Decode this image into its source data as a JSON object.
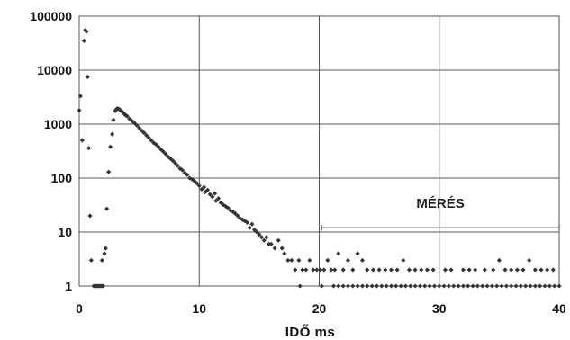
{
  "chart_data": {
    "type": "scatter",
    "title": "",
    "xlabel": "IDŐ  ms",
    "ylabel": "",
    "xlim": [
      0,
      40
    ],
    "ylim": [
      1,
      100000
    ],
    "yscale": "log",
    "grid": true,
    "x_ticks": [
      0,
      10,
      20,
      30,
      40
    ],
    "y_ticks": [
      1,
      10,
      100,
      1000,
      10000,
      100000
    ],
    "annotation": {
      "text": "MÉRÉS",
      "range": [
        20.2,
        40
      ]
    },
    "marker_color": "#333333",
    "series": [
      {
        "points": [
          [
            0.0,
            1800
          ],
          [
            0.1,
            3300
          ],
          [
            0.25,
            500
          ],
          [
            0.4,
            35000
          ],
          [
            0.5,
            55000
          ],
          [
            0.6,
            52000
          ],
          [
            0.7,
            7500
          ],
          [
            0.8,
            360
          ],
          [
            0.9,
            20
          ],
          [
            1.0,
            3
          ],
          [
            1.2,
            1
          ],
          [
            1.3,
            1
          ],
          [
            1.4,
            1
          ],
          [
            1.5,
            1
          ],
          [
            1.6,
            1
          ],
          [
            1.7,
            1
          ],
          [
            1.8,
            1
          ],
          [
            1.9,
            1
          ],
          [
            2.0,
            1
          ],
          [
            1.9,
            3
          ],
          [
            2.1,
            4
          ],
          [
            2.2,
            5
          ],
          [
            2.3,
            27
          ],
          [
            2.45,
            130
          ],
          [
            2.6,
            380
          ],
          [
            2.75,
            650
          ],
          [
            2.85,
            1200
          ],
          [
            3.0,
            1750
          ],
          [
            3.1,
            1900
          ],
          [
            3.2,
            1950
          ],
          [
            3.3,
            1900
          ],
          [
            3.4,
            1850
          ],
          [
            3.5,
            1750
          ],
          [
            3.6,
            1680
          ],
          [
            3.7,
            1600
          ],
          [
            3.8,
            1500
          ],
          [
            3.9,
            1450
          ],
          [
            4.0,
            1400
          ],
          [
            4.2,
            1250
          ],
          [
            4.4,
            1150
          ],
          [
            4.6,
            1050
          ],
          [
            4.8,
            950
          ],
          [
            5.0,
            850
          ],
          [
            5.2,
            760
          ],
          [
            5.4,
            690
          ],
          [
            5.6,
            620
          ],
          [
            5.8,
            560
          ],
          [
            6.0,
            500
          ],
          [
            6.2,
            450
          ],
          [
            6.4,
            420
          ],
          [
            6.6,
            380
          ],
          [
            6.8,
            340
          ],
          [
            7.0,
            310
          ],
          [
            7.2,
            280
          ],
          [
            7.4,
            250
          ],
          [
            7.6,
            230
          ],
          [
            7.8,
            210
          ],
          [
            8.0,
            190
          ],
          [
            8.2,
            170
          ],
          [
            8.4,
            150
          ],
          [
            8.6,
            140
          ],
          [
            8.8,
            125
          ],
          [
            9.0,
            115
          ],
          [
            9.2,
            100
          ],
          [
            9.4,
            95
          ],
          [
            9.6,
            88
          ],
          [
            9.8,
            80
          ],
          [
            10.0,
            72
          ],
          [
            10.2,
            62
          ],
          [
            10.4,
            68
          ],
          [
            10.5,
            55
          ],
          [
            10.7,
            60
          ],
          [
            10.9,
            50
          ],
          [
            11.1,
            45
          ],
          [
            11.3,
            52
          ],
          [
            11.4,
            38
          ],
          [
            11.6,
            42
          ],
          [
            11.8,
            35
          ],
          [
            12.0,
            32
          ],
          [
            12.2,
            30
          ],
          [
            12.4,
            28
          ],
          [
            12.6,
            25
          ],
          [
            12.8,
            24
          ],
          [
            13.0,
            22
          ],
          [
            13.2,
            20
          ],
          [
            13.4,
            18
          ],
          [
            13.6,
            17
          ],
          [
            13.8,
            16
          ],
          [
            14.0,
            15
          ],
          [
            14.2,
            12
          ],
          [
            14.4,
            14
          ],
          [
            14.6,
            11
          ],
          [
            14.8,
            10
          ],
          [
            15.0,
            9
          ],
          [
            15.2,
            8
          ],
          [
            15.4,
            7
          ],
          [
            15.6,
            8
          ],
          [
            15.8,
            6
          ],
          [
            16.0,
            6
          ],
          [
            16.3,
            5
          ],
          [
            16.6,
            7
          ],
          [
            16.9,
            5
          ],
          [
            17.1,
            4
          ],
          [
            17.4,
            3
          ],
          [
            17.7,
            3
          ],
          [
            18.0,
            2
          ],
          [
            18.3,
            3
          ],
          [
            18.6,
            2
          ],
          [
            18.9,
            2
          ],
          [
            19.2,
            3
          ],
          [
            19.5,
            2
          ],
          [
            19.8,
            2
          ],
          [
            20.1,
            2
          ],
          [
            20.4,
            2
          ],
          [
            20.7,
            3
          ],
          [
            21.0,
            2
          ],
          [
            21.3,
            2
          ],
          [
            21.6,
            4
          ],
          [
            22.0,
            2
          ],
          [
            22.4,
            3
          ],
          [
            22.8,
            2
          ],
          [
            23.2,
            4
          ],
          [
            23.6,
            3
          ],
          [
            24.0,
            2
          ],
          [
            24.5,
            2
          ],
          [
            25.0,
            2
          ],
          [
            25.5,
            2
          ],
          [
            26.0,
            2
          ],
          [
            26.5,
            2
          ],
          [
            27.0,
            3
          ],
          [
            27.5,
            2
          ],
          [
            28.0,
            2
          ],
          [
            28.5,
            2
          ],
          [
            29.0,
            2
          ],
          [
            29.5,
            2
          ],
          [
            30.5,
            2
          ],
          [
            31.0,
            2
          ],
          [
            32.0,
            2
          ],
          [
            32.5,
            2
          ],
          [
            33.0,
            2
          ],
          [
            33.8,
            2
          ],
          [
            34.5,
            2
          ],
          [
            35.0,
            3
          ],
          [
            35.5,
            2
          ],
          [
            36.0,
            2
          ],
          [
            36.5,
            2
          ],
          [
            37.0,
            2
          ],
          [
            37.5,
            3
          ],
          [
            38.0,
            2
          ],
          [
            38.5,
            2
          ],
          [
            39.0,
            2
          ],
          [
            39.5,
            2
          ],
          [
            18.4,
            1
          ],
          [
            20.2,
            1
          ],
          [
            21.2,
            1
          ],
          [
            21.6,
            1
          ],
          [
            22.0,
            1
          ],
          [
            22.4,
            1
          ],
          [
            22.8,
            1
          ],
          [
            23.2,
            1
          ],
          [
            23.6,
            1
          ],
          [
            24.0,
            1
          ],
          [
            24.4,
            1
          ],
          [
            24.8,
            1
          ],
          [
            25.2,
            1
          ],
          [
            25.6,
            1
          ],
          [
            26.0,
            1
          ],
          [
            26.4,
            1
          ],
          [
            26.8,
            1
          ],
          [
            27.2,
            1
          ],
          [
            27.6,
            1
          ],
          [
            28.0,
            1
          ],
          [
            28.4,
            1
          ],
          [
            28.8,
            1
          ],
          [
            29.2,
            1
          ],
          [
            29.6,
            1
          ],
          [
            30.0,
            1
          ],
          [
            30.4,
            1
          ],
          [
            30.8,
            1
          ],
          [
            31.2,
            1
          ],
          [
            31.6,
            1
          ],
          [
            32.0,
            1
          ],
          [
            32.4,
            1
          ],
          [
            32.8,
            1
          ],
          [
            33.2,
            1
          ],
          [
            33.6,
            1
          ],
          [
            34.0,
            1
          ],
          [
            34.4,
            1
          ],
          [
            34.8,
            1
          ],
          [
            35.2,
            1
          ],
          [
            35.6,
            1
          ],
          [
            36.0,
            1
          ],
          [
            36.4,
            1
          ],
          [
            36.8,
            1
          ],
          [
            37.2,
            1
          ],
          [
            37.6,
            1
          ],
          [
            38.0,
            1
          ],
          [
            38.4,
            1
          ],
          [
            38.8,
            1
          ],
          [
            39.2,
            1
          ],
          [
            39.6,
            1
          ],
          [
            40.0,
            1
          ]
        ]
      }
    ]
  }
}
